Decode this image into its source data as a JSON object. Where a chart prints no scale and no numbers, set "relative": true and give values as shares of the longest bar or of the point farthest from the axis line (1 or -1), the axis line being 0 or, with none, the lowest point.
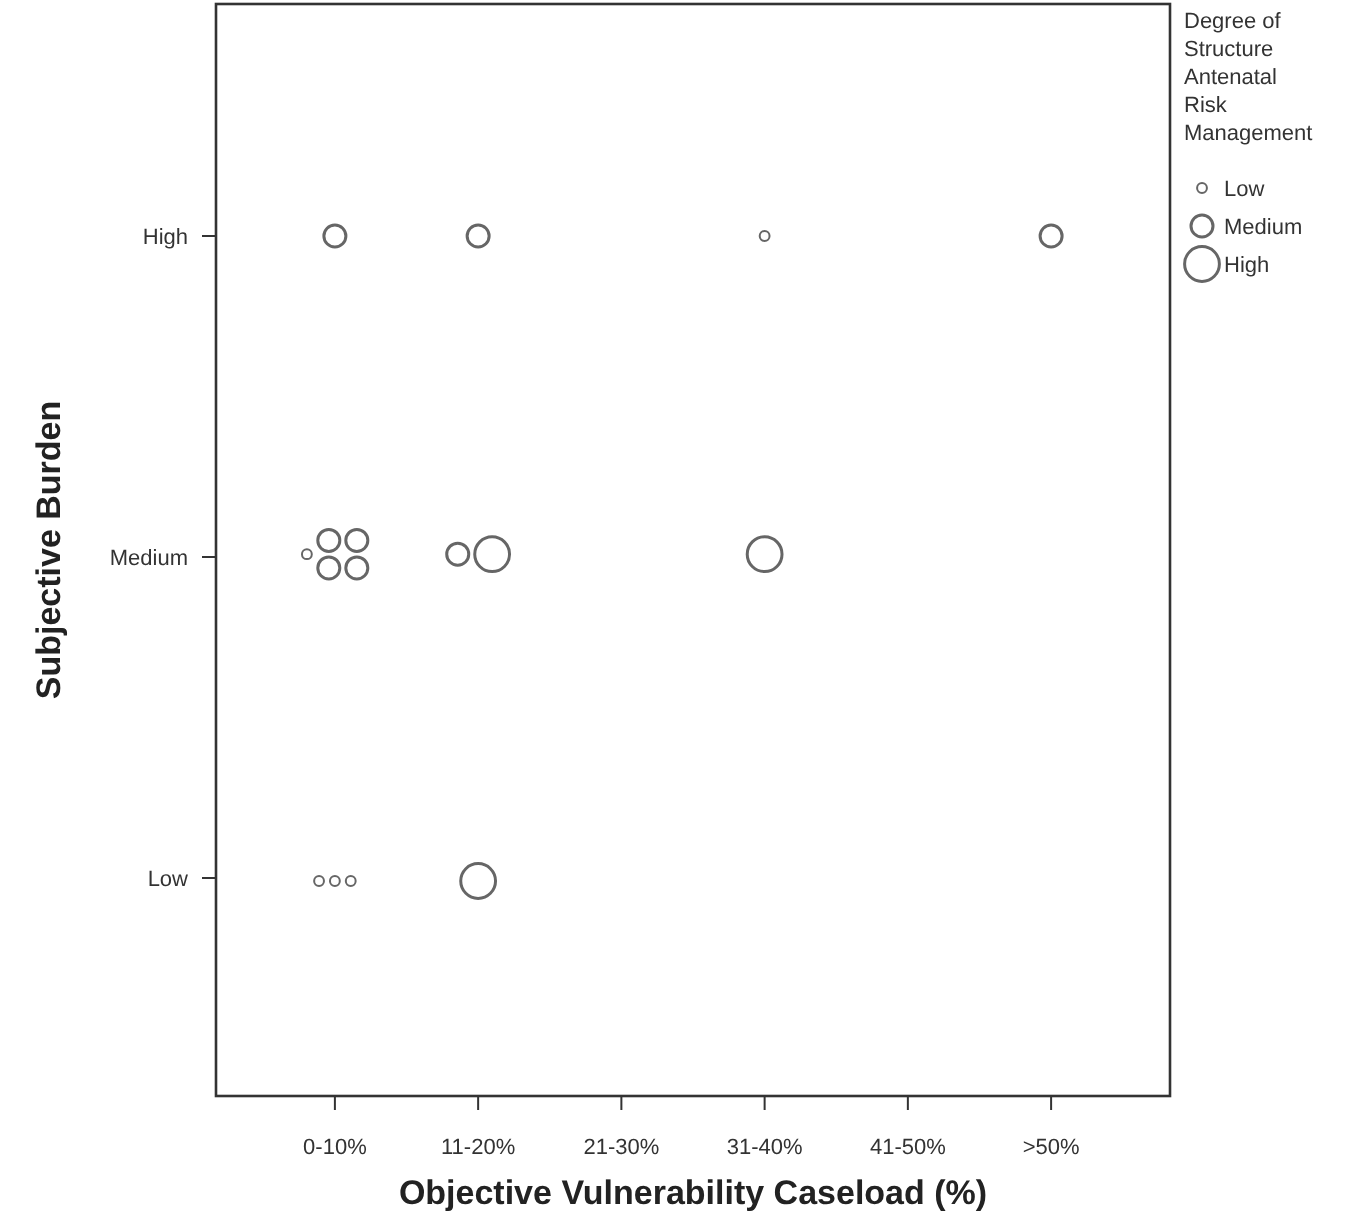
{
  "chart_data": {
    "type": "bubble",
    "relative": true,
    "xlabel": "Objective Vulnerability Caseload (%)",
    "ylabel": "Subjective Burden",
    "legend_title": "Degree of Structure Antenatal Risk Management",
    "marker": "circle",
    "categories": [
      "0-10%",
      "11-20%",
      "21-30%",
      "31-40%",
      "41-50%",
      ">50%"
    ],
    "y_categories": [
      "High",
      "Medium",
      "Low"
    ],
    "size_legend": [
      {
        "value": 0.08,
        "label": "Low"
      },
      {
        "value": 0.4,
        "label": "Medium"
      },
      {
        "value": 1,
        "label": "High"
      }
    ],
    "series": [
      {
        "color": "#666666",
        "x": [
          "31-40%",
          "11-20%",
          "0-10%",
          "11-20%",
          "31-40%",
          ">50%",
          "0-10%",
          "0-10%",
          "0-10%",
          "0-10%",
          "0-10%",
          "11-20%",
          "11-20%",
          "0-10%",
          "0-10%",
          "0-10%"
        ],
        "values": [
          0.63,
          0.25,
          1,
          1,
          1,
          1,
          0.63,
          0.646,
          0.614,
          0.646,
          0.614,
          0.63,
          0.63,
          0.25,
          0.25,
          0.25
        ],
        "sizes": [
          1,
          1,
          0.4,
          0.4,
          0.08,
          0.4,
          0.08,
          0.4,
          0.4,
          0.4,
          0.4,
          1,
          0.4,
          0.08,
          0.08,
          0.08
        ]
      }
    ]
  }
}
